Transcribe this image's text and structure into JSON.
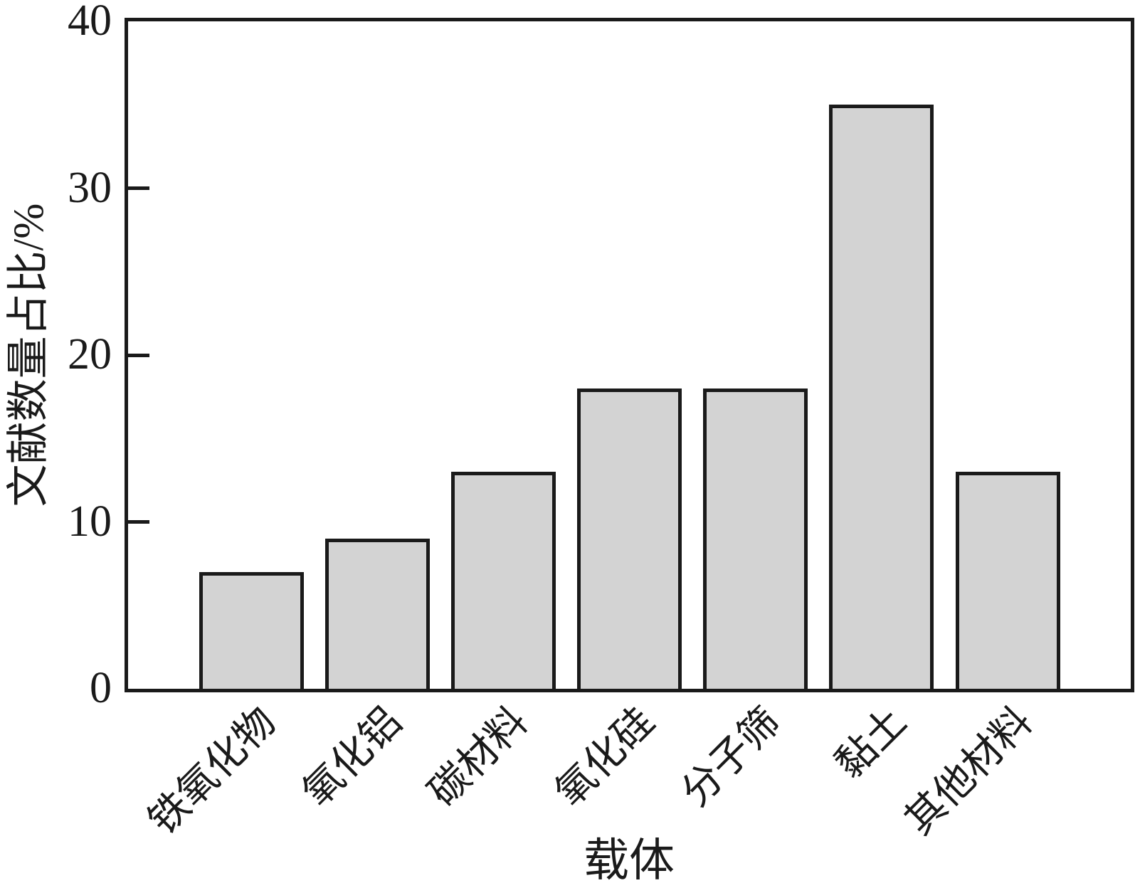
{
  "chart_data": {
    "type": "bar",
    "categories": [
      "铁氧化物",
      "氧化铝",
      "碳材料",
      "氧化硅",
      "分子筛",
      "黏土",
      "其他材料"
    ],
    "values": [
      7,
      9,
      13,
      18,
      18,
      35,
      13
    ],
    "title": "",
    "xlabel": "载体",
    "ylabel": "文献数量占比/%",
    "ylim": [
      0,
      40
    ],
    "yticks": [
      0,
      10,
      20,
      30,
      40
    ],
    "grid": false,
    "legend": "none",
    "bar_fill_color": "#d3d3d3",
    "bar_border_color": "#1a1a1a",
    "axis_color": "#1a1a1a",
    "background_color": "#ffffff"
  }
}
